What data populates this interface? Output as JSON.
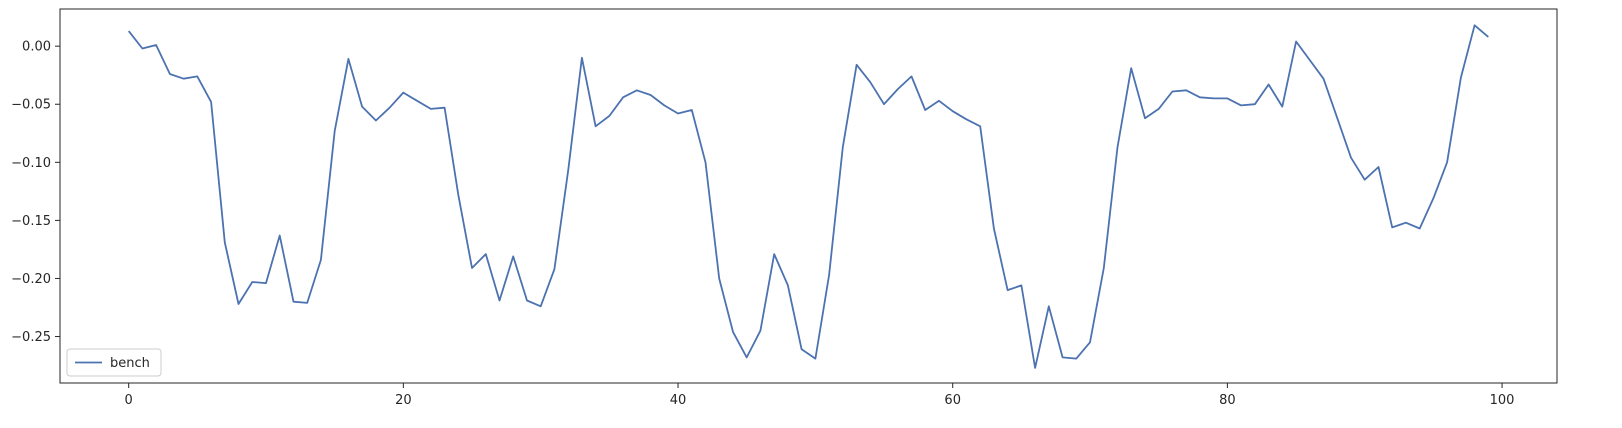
{
  "chart_data": {
    "type": "line",
    "title": "",
    "xlabel": "",
    "ylabel": "",
    "xlim": [
      -5,
      104
    ],
    "ylim": [
      -0.29,
      0.032
    ],
    "grid": false,
    "legend": {
      "placement": "lower-left",
      "entries": [
        "bench"
      ]
    },
    "x_ticks": [
      0,
      20,
      40,
      60,
      80,
      100
    ],
    "x_tick_labels": [
      "0",
      "20",
      "40",
      "60",
      "80",
      "100"
    ],
    "y_ticks": [
      0.0,
      -0.05,
      -0.1,
      -0.15,
      -0.2,
      -0.25
    ],
    "y_tick_labels": [
      "0.00",
      "−0.05",
      "−0.10",
      "−0.15",
      "−0.20",
      "−0.25"
    ],
    "series": [
      {
        "name": "bench",
        "color": "#4c72b0",
        "x": [
          0,
          1,
          2,
          3,
          4,
          5,
          6,
          7,
          8,
          9,
          10,
          11,
          12,
          13,
          14,
          15,
          16,
          17,
          18,
          19,
          20,
          21,
          22,
          23,
          24,
          25,
          26,
          27,
          28,
          29,
          30,
          31,
          32,
          33,
          34,
          35,
          36,
          37,
          38,
          39,
          40,
          41,
          42,
          43,
          44,
          45,
          46,
          47,
          48,
          49,
          50,
          51,
          52,
          53,
          54,
          55,
          56,
          57,
          58,
          59,
          60,
          61,
          62,
          63,
          64,
          65,
          66,
          67,
          68,
          69,
          70,
          71,
          72,
          73,
          74,
          75,
          76,
          77,
          78,
          79,
          80,
          81,
          82,
          83,
          84,
          85,
          86,
          87,
          88,
          89,
          90,
          91,
          92,
          93,
          94,
          95,
          96,
          97,
          98,
          99
        ],
        "y": [
          0.013,
          -0.002,
          0.001,
          -0.024,
          -0.028,
          -0.026,
          -0.048,
          -0.169,
          -0.222,
          -0.203,
          -0.204,
          -0.163,
          -0.22,
          -0.221,
          -0.184,
          -0.073,
          -0.011,
          -0.052,
          -0.064,
          -0.053,
          -0.04,
          -0.047,
          -0.054,
          -0.053,
          -0.128,
          -0.191,
          -0.179,
          -0.219,
          -0.181,
          -0.219,
          -0.224,
          -0.192,
          -0.107,
          -0.01,
          -0.069,
          -0.06,
          -0.044,
          -0.038,
          -0.042,
          -0.051,
          -0.058,
          -0.055,
          -0.1,
          -0.2,
          -0.246,
          -0.268,
          -0.245,
          -0.179,
          -0.206,
          -0.261,
          -0.269,
          -0.197,
          -0.087,
          -0.016,
          -0.031,
          -0.05,
          -0.037,
          -0.026,
          -0.055,
          -0.047,
          -0.056,
          -0.063,
          -0.069,
          -0.157,
          -0.21,
          -0.206,
          -0.277,
          -0.224,
          -0.268,
          -0.269,
          -0.255,
          -0.191,
          -0.087,
          -0.019,
          -0.062,
          -0.054,
          -0.039,
          -0.038,
          -0.044,
          -0.045,
          -0.045,
          -0.051,
          -0.05,
          -0.033,
          -0.052,
          0.004,
          -0.012,
          -0.028,
          -0.062,
          -0.096,
          -0.115,
          -0.104,
          -0.156,
          -0.152,
          -0.157,
          -0.131,
          -0.1,
          -0.027,
          0.018,
          0.008
        ]
      }
    ]
  }
}
